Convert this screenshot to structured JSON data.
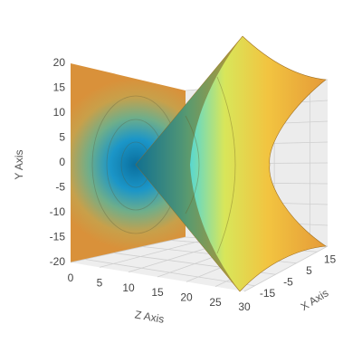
{
  "chart_data": {
    "type": "surface3d",
    "x_label": "X Axis",
    "y_label": "Y Axis",
    "z_label": "Z Axis",
    "xlim": [
      -20,
      20
    ],
    "xticks": [
      -15,
      -5,
      5,
      15
    ],
    "ylim": [
      -20,
      20
    ],
    "yticks": [
      -20,
      -15,
      -10,
      -5,
      0,
      5,
      10,
      15,
      20
    ],
    "zlim": [
      0,
      30
    ],
    "zticks": [
      0,
      5,
      10,
      15,
      20,
      25,
      30
    ],
    "grid": true
  }
}
